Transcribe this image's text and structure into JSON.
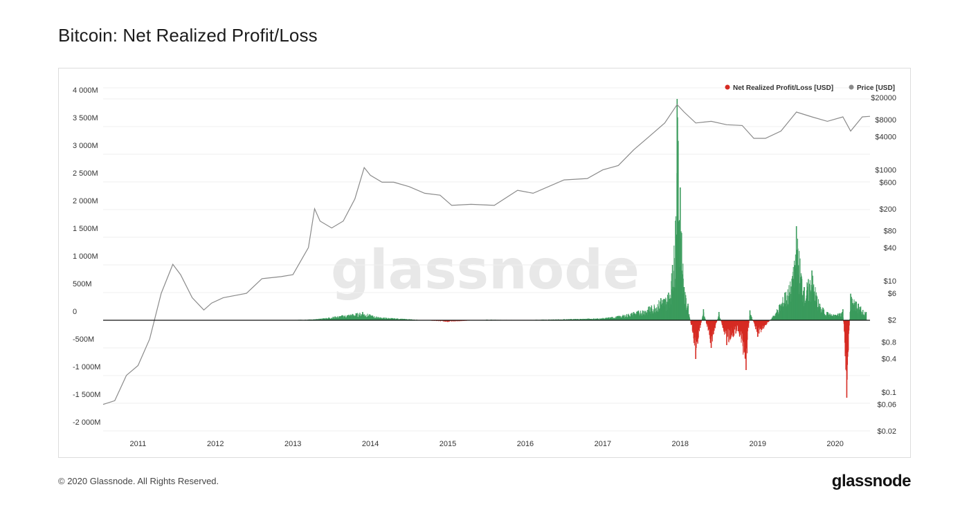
{
  "page": {
    "title": "Bitcoin: Net Realized Profit/Loss",
    "copyright": "© 2020 Glassnode. All Rights Reserved.",
    "logo_text": "glassnode",
    "watermark": "glassnode"
  },
  "chart_data": {
    "type": "line",
    "title": "Bitcoin: Net Realized Profit/Loss",
    "legend_position": "top-right",
    "grid": true,
    "x_ticks": [
      "2011",
      "2012",
      "2013",
      "2014",
      "2015",
      "2016",
      "2017",
      "2018",
      "2019",
      "2020"
    ],
    "x_range": [
      2010.55,
      2020.45
    ],
    "y_left": {
      "scale": "linear",
      "range": [
        -2000,
        4200
      ],
      "ticks": [
        {
          "value": 4000,
          "label": "4 000M"
        },
        {
          "value": 3500,
          "label": "3 500M"
        },
        {
          "value": 3000,
          "label": "3 000M"
        },
        {
          "value": 2500,
          "label": "2 500M"
        },
        {
          "value": 2000,
          "label": "2 000M"
        },
        {
          "value": 1500,
          "label": "1 500M"
        },
        {
          "value": 1000,
          "label": "1 000M"
        },
        {
          "value": 500,
          "label": "500M"
        },
        {
          "value": 0,
          "label": "0"
        },
        {
          "value": -500,
          "label": "-500M"
        },
        {
          "value": -1000,
          "label": "-1 000M"
        },
        {
          "value": -1500,
          "label": "-1 500M"
        },
        {
          "value": -2000,
          "label": "-2 000M"
        }
      ]
    },
    "y_right": {
      "scale": "log",
      "range": [
        0.02,
        30000
      ],
      "ticks": [
        {
          "value": 20000,
          "label": "$20000"
        },
        {
          "value": 8000,
          "label": "$8000"
        },
        {
          "value": 4000,
          "label": "$4000"
        },
        {
          "value": 1000,
          "label": "$1000"
        },
        {
          "value": 600,
          "label": "$600"
        },
        {
          "value": 200,
          "label": "$200"
        },
        {
          "value": 80,
          "label": "$80"
        },
        {
          "value": 40,
          "label": "$40"
        },
        {
          "value": 10,
          "label": "$10"
        },
        {
          "value": 6,
          "label": "$6"
        },
        {
          "value": 2,
          "label": "$2"
        },
        {
          "value": 0.8,
          "label": "$0.8"
        },
        {
          "value": 0.4,
          "label": "$0.4"
        },
        {
          "value": 0.1,
          "label": "$0.1"
        },
        {
          "value": 0.06,
          "label": "$0.06"
        },
        {
          "value": 0.02,
          "label": "$0.02"
        }
      ]
    },
    "series": [
      {
        "name": "Net Realized Profit/Loss [USD]",
        "axis": "left",
        "color_positive": "#3a9b5c",
        "color_negative": "#d62b23",
        "legend_color": "#d62b23",
        "x": [
          2011.0,
          2012.0,
          2013.0,
          2013.3,
          2013.9,
          2014.1,
          2014.5,
          2015.0,
          2015.5,
          2016.0,
          2016.5,
          2017.0,
          2017.2,
          2017.4,
          2017.6,
          2017.75,
          2017.85,
          2017.9,
          2017.94,
          2017.96,
          2018.0,
          2018.05,
          2018.1,
          2018.2,
          2018.3,
          2018.4,
          2018.5,
          2018.6,
          2018.75,
          2018.85,
          2018.9,
          2019.0,
          2019.2,
          2019.35,
          2019.45,
          2019.5,
          2019.6,
          2019.7,
          2019.8,
          2019.9,
          2020.0,
          2020.1,
          2020.15,
          2020.2,
          2020.3,
          2020.4
        ],
        "values": [
          0,
          0,
          5,
          20,
          150,
          60,
          20,
          -30,
          10,
          5,
          20,
          40,
          80,
          150,
          250,
          400,
          500,
          1000,
          1800,
          4000,
          2400,
          600,
          300,
          -700,
          200,
          -500,
          150,
          -450,
          -200,
          -900,
          180,
          -300,
          80,
          500,
          800,
          1700,
          600,
          900,
          300,
          150,
          100,
          200,
          -1400,
          480,
          300,
          150
        ]
      },
      {
        "name": "Price [USD]",
        "axis": "right",
        "color": "#8a8a8a",
        "x": [
          2010.55,
          2010.7,
          2010.85,
          2011.0,
          2011.15,
          2011.3,
          2011.45,
          2011.55,
          2011.7,
          2011.85,
          2011.95,
          2012.1,
          2012.4,
          2012.6,
          2012.85,
          2013.0,
          2013.2,
          2013.28,
          2013.35,
          2013.5,
          2013.65,
          2013.8,
          2013.92,
          2014.0,
          2014.15,
          2014.3,
          2014.5,
          2014.7,
          2014.9,
          2015.05,
          2015.3,
          2015.6,
          2015.9,
          2016.1,
          2016.5,
          2016.8,
          2017.0,
          2017.2,
          2017.4,
          2017.6,
          2017.8,
          2017.96,
          2018.05,
          2018.2,
          2018.4,
          2018.6,
          2018.8,
          2018.95,
          2019.1,
          2019.3,
          2019.5,
          2019.7,
          2019.9,
          2020.1,
          2020.2,
          2020.35,
          2020.45
        ],
        "values": [
          0.06,
          0.07,
          0.2,
          0.3,
          0.9,
          6,
          20,
          13,
          5,
          3,
          4,
          5,
          6,
          11,
          12,
          13,
          40,
          200,
          120,
          90,
          120,
          300,
          1100,
          800,
          600,
          600,
          500,
          380,
          350,
          230,
          240,
          230,
          430,
          380,
          660,
          700,
          1000,
          1200,
          2300,
          4000,
          7000,
          15000,
          11000,
          7000,
          7500,
          6500,
          6300,
          3700,
          3700,
          5000,
          11000,
          9000,
          7500,
          9000,
          5000,
          9000,
          9200
        ]
      }
    ]
  }
}
